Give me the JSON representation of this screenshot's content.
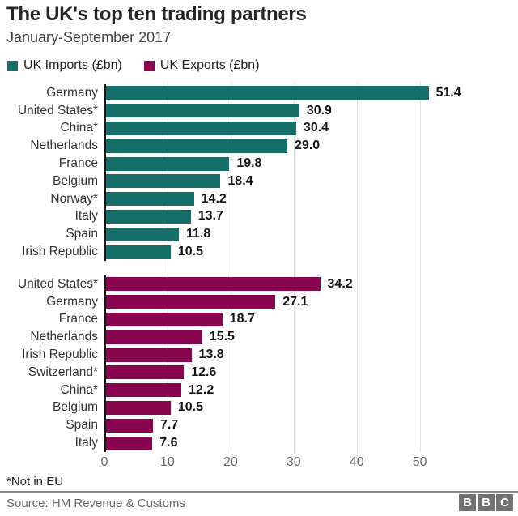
{
  "header": {
    "title": "The UK's top ten trading partners",
    "subtitle": "January-September 2017"
  },
  "legend": [
    {
      "label": "UK Imports (£bn)",
      "color": "#156e68"
    },
    {
      "label": "UK Exports (£bn)",
      "color": "#88064e"
    }
  ],
  "chart_data": {
    "type": "bar",
    "orientation": "horizontal",
    "title": "The UK's top ten trading partners",
    "subtitle": "January-September 2017",
    "xlabel": "",
    "ylabel": "",
    "xlim": [
      0,
      63
    ],
    "xticks": [
      0,
      10,
      20,
      30,
      40,
      50
    ],
    "grid": true,
    "legend_position": "top",
    "series": [
      {
        "name": "UK Imports (£bn)",
        "color": "#156e68",
        "categories": [
          "Germany",
          "United States*",
          "China*",
          "Netherlands",
          "France",
          "Belgium",
          "Norway*",
          "Italy",
          "Spain",
          "Irish Republic"
        ],
        "values": [
          51.4,
          30.9,
          30.4,
          29.0,
          19.8,
          18.4,
          14.2,
          13.7,
          11.8,
          10.5
        ],
        "value_labels": [
          "51.4",
          "30.9",
          "30.4",
          "29.0",
          "19.8",
          "18.4",
          "14.2",
          "13.7",
          "11.8",
          "10.5"
        ]
      },
      {
        "name": "UK Exports (£bn)",
        "color": "#88064e",
        "categories": [
          "United States*",
          "Germany",
          "France",
          "Netherlands",
          "Irish Republic",
          "Switzerland*",
          "China*",
          "Belgium",
          "Spain",
          "Italy"
        ],
        "values": [
          34.2,
          27.1,
          18.7,
          15.5,
          13.8,
          12.6,
          12.2,
          10.5,
          7.7,
          7.6
        ],
        "value_labels": [
          "34.2",
          "27.1",
          "18.7",
          "15.5",
          "13.8",
          "12.6",
          "12.2",
          "10.5",
          "7.7",
          "7.6"
        ]
      }
    ]
  },
  "footnote": "*Not in EU",
  "footer": {
    "source": "Source: HM Revenue & Customs",
    "logo": [
      "B",
      "B",
      "C"
    ]
  }
}
